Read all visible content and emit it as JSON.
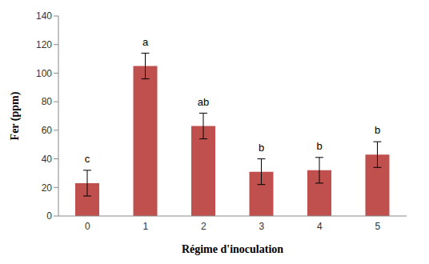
{
  "chart_data": {
    "type": "bar",
    "categories": [
      "0",
      "1",
      "2",
      "3",
      "4",
      "5"
    ],
    "values": [
      23,
      105,
      63,
      31,
      32,
      43
    ],
    "errors": [
      9,
      9,
      9,
      9,
      9,
      9
    ],
    "annotations": [
      "c",
      "a",
      "ab",
      "b",
      "b",
      "b"
    ],
    "color": "#c0504d",
    "xlabel": "Régime d'inoculation",
    "ylabel": "Fer (ppm)",
    "ylim": [
      0,
      140
    ],
    "yticks": [
      0,
      20,
      40,
      60,
      80,
      100,
      120,
      140
    ],
    "grid": false
  }
}
